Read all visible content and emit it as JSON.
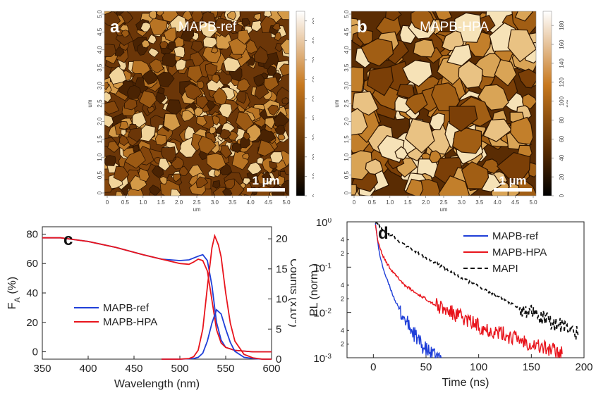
{
  "panels": {
    "a": {
      "letter": "a",
      "title": "MAPB-ref",
      "scalebar": "1 µm",
      "colorbar_ticks": [
        0,
        10,
        20,
        30,
        40,
        50,
        60,
        70,
        80,
        90
      ],
      "colorbar_unit": "nm",
      "axis_unit": "um"
    },
    "b": {
      "letter": "b",
      "title": "MAPB-HPA",
      "scalebar": "1 µm",
      "colorbar_ticks": [
        0,
        20,
        40,
        60,
        80,
        100,
        120,
        140,
        160,
        180
      ],
      "colorbar_unit": "nm",
      "axis_unit": "um"
    },
    "c": {
      "letter": "c"
    },
    "d": {
      "letter": "d"
    }
  },
  "afm_axis_ticks": [
    "0",
    "0.5",
    "1.0",
    "1.5",
    "2.0",
    "2.5",
    "3.0",
    "3.5",
    "4.0",
    "4.5",
    "5.0"
  ],
  "colors": {
    "ref": "#1f3fd8",
    "hpa": "#e8141c",
    "mapi": "#111111",
    "afm_dark": "#3a1c02",
    "afm_light": "#f2d29a"
  },
  "chart_data": [
    {
      "type": "line",
      "panel": "c",
      "xlabel": "Wavelength (nm)",
      "ylabel": "F_A (%)",
      "y2label": "Counts (x10^3)",
      "xlim": [
        350,
        600
      ],
      "ylim": [
        -5,
        85
      ],
      "y2lim": [
        0,
        22
      ],
      "xticks": [
        350,
        400,
        450,
        500,
        550,
        600
      ],
      "yticks": [
        0,
        20,
        40,
        60,
        80
      ],
      "y2ticks": [
        0,
        5,
        10,
        15,
        20
      ],
      "legend": "bottom-left",
      "series": [
        {
          "name": "MAPB-ref",
          "axis": "left",
          "x": [
            350,
            370,
            400,
            430,
            460,
            480,
            500,
            510,
            520,
            525,
            530,
            535,
            540,
            545,
            550,
            560,
            580,
            600
          ],
          "y": [
            77.5,
            77.5,
            75,
            71,
            66,
            63,
            62,
            62.5,
            65,
            66,
            62,
            45,
            20,
            8,
            3,
            1,
            0,
            0
          ]
        },
        {
          "name": "MAPB-HPA",
          "axis": "left",
          "x": [
            350,
            370,
            400,
            430,
            460,
            480,
            500,
            510,
            515,
            520,
            525,
            530,
            535,
            540,
            545,
            550,
            560,
            580,
            600
          ],
          "y": [
            77.5,
            77.5,
            75,
            71,
            66,
            63,
            60,
            59.5,
            61,
            63,
            62,
            55,
            35,
            15,
            6,
            3,
            1,
            0,
            0
          ]
        },
        {
          "name": "MAPB-ref",
          "axis": "right",
          "x": [
            480,
            500,
            515,
            520,
            525,
            530,
            535,
            540,
            545,
            550,
            555,
            560,
            570,
            580,
            590,
            600
          ],
          "y": [
            0,
            0,
            0.1,
            0.3,
            1,
            3,
            6,
            8.2,
            7.5,
            5,
            2.8,
            1.3,
            0.3,
            0.1,
            0,
            0
          ]
        },
        {
          "name": "MAPB-HPA",
          "axis": "right",
          "x": [
            480,
            500,
            510,
            515,
            520,
            525,
            530,
            535,
            538,
            542,
            545,
            550,
            555,
            560,
            570,
            580,
            590,
            600
          ],
          "y": [
            0,
            0,
            0.1,
            0.4,
            1.5,
            5,
            12,
            18.5,
            20.5,
            19,
            17,
            11,
            6,
            3,
            0.8,
            0.2,
            0,
            0
          ]
        }
      ]
    },
    {
      "type": "line",
      "panel": "d",
      "xlabel": "Time (ns)",
      "ylabel": "PL (norm.)",
      "xlim": [
        -25,
        200
      ],
      "ylim": [
        0.001,
        1
      ],
      "yscale": "log",
      "xticks": [
        0,
        50,
        100,
        150,
        200
      ],
      "yticks": [
        0.001,
        0.01,
        0.1,
        1
      ],
      "yminor_labels": [
        2,
        4,
        2,
        4,
        2,
        4
      ],
      "legend": "top-right",
      "series": [
        {
          "name": "MAPB-ref",
          "x": [
            2,
            3,
            5,
            8,
            12,
            16,
            20,
            25,
            30,
            35,
            40,
            45,
            50,
            55,
            60,
            65
          ],
          "y": [
            1,
            0.6,
            0.25,
            0.12,
            0.06,
            0.035,
            0.02,
            0.011,
            0.007,
            0.0045,
            0.003,
            0.002,
            0.0015,
            0.0012,
            0.001,
            0.001
          ]
        },
        {
          "name": "MAPB-HPA",
          "x": [
            2,
            4,
            8,
            12,
            20,
            30,
            40,
            50,
            60,
            80,
            100,
            120,
            140,
            160,
            180
          ],
          "y": [
            0.9,
            0.4,
            0.2,
            0.13,
            0.07,
            0.04,
            0.027,
            0.02,
            0.014,
            0.0085,
            0.005,
            0.0035,
            0.0025,
            0.0017,
            0.0013
          ]
        },
        {
          "name": "MAPI",
          "x": [
            2,
            10,
            20,
            30,
            40,
            60,
            80,
            100,
            120,
            140,
            160,
            180,
            195
          ],
          "y": [
            1,
            0.65,
            0.45,
            0.3,
            0.22,
            0.12,
            0.065,
            0.037,
            0.022,
            0.012,
            0.0075,
            0.0048,
            0.0035
          ]
        }
      ]
    }
  ]
}
